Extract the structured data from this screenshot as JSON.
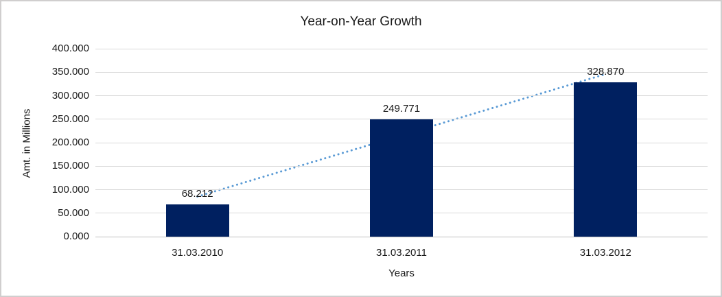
{
  "chart_data": {
    "type": "bar",
    "title": "Year-on-Year Growth",
    "xlabel": "Years",
    "ylabel": "Amt. in Millions",
    "categories": [
      "31.03.2010",
      "31.03.2011",
      "31.03.2012"
    ],
    "values": [
      68.212,
      249.771,
      328.87
    ],
    "value_labels": [
      "68.212",
      "249.771",
      "328.870"
    ],
    "ylim": [
      0,
      400
    ],
    "ytick_step": 50,
    "ytick_labels": [
      "0.000",
      "50.000",
      "100.000",
      "150.000",
      "200.000",
      "250.000",
      "300.000",
      "350.000",
      "400.000"
    ],
    "grid": true,
    "legend": false,
    "bar_color": "#002060",
    "trendline": {
      "type": "linear",
      "style": "dotted",
      "color": "#5b9bd5"
    },
    "gridline_color": "#d9d9d9",
    "axisline_color": "#bfbfbf",
    "border_color": "#d0cece",
    "background": "#ffffff"
  }
}
